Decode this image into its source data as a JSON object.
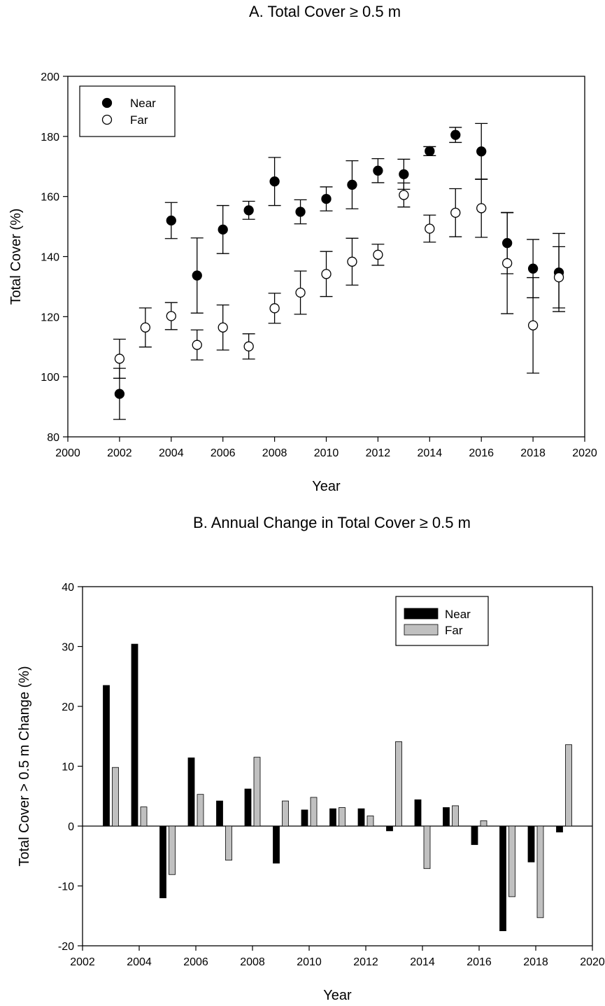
{
  "chart_data": [
    {
      "type": "scatter",
      "title": "A. Total Cover  ≥ 0.5 m",
      "xlabel": "Year",
      "ylabel": "Total Cover (%)",
      "xlim": [
        2000,
        2020
      ],
      "ylim": [
        80,
        200
      ],
      "xticks": [
        2000,
        2002,
        2004,
        2006,
        2008,
        2010,
        2012,
        2014,
        2016,
        2018,
        2020
      ],
      "yticks": [
        80,
        100,
        120,
        140,
        160,
        180,
        200
      ],
      "legend_position": "top-left",
      "series": [
        {
          "name": "Near",
          "marker": "filled-circle",
          "color": "#000000",
          "x": [
            2002,
            2004,
            2005,
            2006,
            2007,
            2008,
            2009,
            2010,
            2011,
            2012,
            2013,
            2014,
            2015,
            2016,
            2017,
            2018,
            2019
          ],
          "y": [
            94.3,
            152,
            133.7,
            149,
            155.4,
            165,
            154.9,
            159.2,
            163.9,
            168.6,
            167.4,
            175.1,
            180.5,
            175,
            144.5,
            136,
            134.7
          ],
          "err": [
            8.5,
            6,
            12.5,
            8,
            3,
            8,
            4,
            4,
            8,
            4,
            5,
            1.5,
            2.5,
            9.3,
            10.2,
            9.7,
            13
          ]
        },
        {
          "name": "Far",
          "marker": "open-circle",
          "color": "#000000",
          "x": [
            2002,
            2003,
            2004,
            2005,
            2006,
            2007,
            2008,
            2009,
            2010,
            2011,
            2012,
            2013,
            2014,
            2015,
            2016,
            2017,
            2018,
            2019
          ],
          "y": [
            106,
            116.4,
            120.2,
            110.6,
            116.4,
            110.1,
            122.8,
            128,
            134.2,
            138.3,
            140.6,
            160.5,
            149.3,
            154.6,
            156.1,
            137.8,
            117.1,
            133.1
          ],
          "err": [
            6.5,
            6.5,
            4.5,
            5,
            7.5,
            4.2,
            5,
            7.2,
            7.5,
            7.8,
            3.5,
            4,
            4.5,
            8,
            9.7,
            16.8,
            15.9,
            10.2
          ]
        }
      ]
    },
    {
      "type": "bar",
      "title": "B. Annual Change in Total Cover ≥ 0.5 m",
      "xlabel": "Year",
      "ylabel": "Total Cover > 0.5 m Change (%)",
      "xlim": [
        2002,
        2020
      ],
      "ylim": [
        -20,
        40
      ],
      "xticks": [
        2002,
        2004,
        2006,
        2008,
        2010,
        2012,
        2014,
        2016,
        2018,
        2020
      ],
      "yticks": [
        -20,
        -10,
        0,
        10,
        20,
        30,
        40
      ],
      "legend_position": "top-right",
      "categories": [
        2003,
        2004,
        2005,
        2006,
        2007,
        2008,
        2009,
        2010,
        2011,
        2012,
        2013,
        2014,
        2015,
        2016,
        2017,
        2018,
        2019
      ],
      "series": [
        {
          "name": "Near",
          "color": "#000000",
          "values": [
            23.5,
            30.4,
            -12,
            11.4,
            4.2,
            6.2,
            -6.2,
            2.7,
            2.9,
            2.9,
            -0.8,
            4.4,
            3.1,
            -3.1,
            -17.5,
            -6,
            -1
          ]
        },
        {
          "name": "Far",
          "color": "#c0c0c0",
          "values": [
            9.8,
            3.2,
            -8.1,
            5.3,
            -5.7,
            11.5,
            4.2,
            4.8,
            3.1,
            1.7,
            14.1,
            -7.1,
            3.4,
            0.9,
            -11.8,
            -15.3,
            13.6
          ]
        }
      ]
    }
  ]
}
